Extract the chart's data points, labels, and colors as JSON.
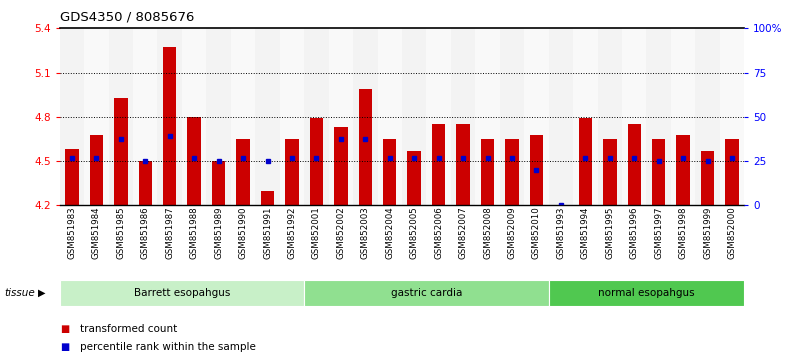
{
  "title": "GDS4350 / 8085676",
  "samples": [
    "GSM851983",
    "GSM851984",
    "GSM851985",
    "GSM851986",
    "GSM851987",
    "GSM851988",
    "GSM851989",
    "GSM851990",
    "GSM851991",
    "GSM851992",
    "GSM852001",
    "GSM852002",
    "GSM852003",
    "GSM852004",
    "GSM852005",
    "GSM852006",
    "GSM852007",
    "GSM852008",
    "GSM852009",
    "GSM852010",
    "GSM851993",
    "GSM851994",
    "GSM851995",
    "GSM851996",
    "GSM851997",
    "GSM851998",
    "GSM851999",
    "GSM852000"
  ],
  "bar_values": [
    4.58,
    4.68,
    4.93,
    4.5,
    5.27,
    4.8,
    4.5,
    4.65,
    4.3,
    4.65,
    4.79,
    4.73,
    4.99,
    4.65,
    4.57,
    4.75,
    4.75,
    4.65,
    4.65,
    4.68,
    4.2,
    4.79,
    4.65,
    4.75,
    4.65,
    4.68,
    4.57,
    4.65
  ],
  "blue_dot_values": [
    4.52,
    4.52,
    4.65,
    4.5,
    4.67,
    4.52,
    4.5,
    4.52,
    4.5,
    4.52,
    4.52,
    4.65,
    4.65,
    4.52,
    4.52,
    4.52,
    4.52,
    4.52,
    4.52,
    4.44,
    4.2,
    4.52,
    4.52,
    4.52,
    4.5,
    4.52,
    4.5,
    4.52
  ],
  "ylim": [
    4.2,
    5.4
  ],
  "yticks": [
    4.2,
    4.5,
    4.8,
    5.1,
    5.4
  ],
  "ytick_labels": [
    "4.2",
    "4.5",
    "4.8",
    "5.1",
    "5.4"
  ],
  "right_yticks": [
    0,
    25,
    50,
    75,
    100
  ],
  "right_ytick_labels": [
    "0",
    "25",
    "50",
    "75",
    "100%"
  ],
  "hlines": [
    4.5,
    4.8,
    5.1
  ],
  "groups": [
    {
      "label": "Barrett esopahgus",
      "start": 0,
      "end": 9,
      "color": "#c8f0c8"
    },
    {
      "label": "gastric cardia",
      "start": 10,
      "end": 19,
      "color": "#90e090"
    },
    {
      "label": "normal esopahgus",
      "start": 20,
      "end": 27,
      "color": "#50c850"
    }
  ],
  "bar_color": "#cc0000",
  "dot_color": "#0000cc",
  "bar_width": 0.55,
  "tissue_label": "tissue",
  "legend_items": [
    {
      "label": "transformed count",
      "color": "#cc0000"
    },
    {
      "label": "percentile rank within the sample",
      "color": "#0000cc"
    }
  ],
  "bg_color": "#f0f0f0"
}
